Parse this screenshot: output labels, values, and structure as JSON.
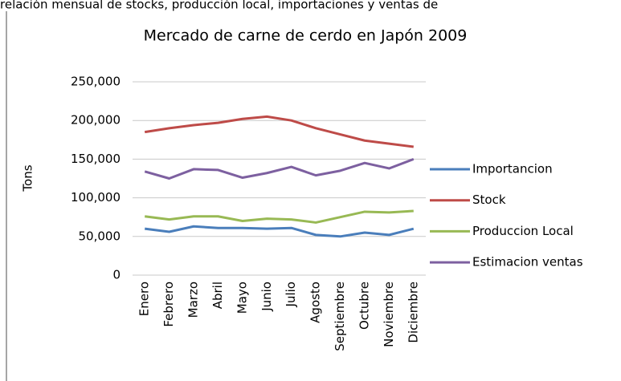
{
  "caption": "relación mensual de stocks, producción local, importaciones y ventas de",
  "chart_data": {
    "type": "line",
    "title": "Mercado de carne de cerdo en Japón 2009",
    "y_label": "Tons",
    "categories": [
      "Enero",
      "Febrero",
      "Marzo",
      "Abril",
      "Mayo",
      "Junio",
      "Julio",
      "Agosto",
      "Septiembre",
      "Octubre",
      "Noviembre",
      "Diciembre"
    ],
    "series": [
      {
        "name": "Importancion",
        "color": "#4a7ebb",
        "values": [
          60000,
          56000,
          63000,
          61000,
          61000,
          60000,
          61000,
          52000,
          50000,
          55000,
          52000,
          60000
        ]
      },
      {
        "name": "Stock",
        "color": "#be4b48",
        "values": [
          185000,
          190000,
          194000,
          197000,
          202000,
          205000,
          200000,
          190000,
          182000,
          174000,
          170000,
          166000
        ]
      },
      {
        "name": "Produccion Local",
        "color": "#98b954",
        "values": [
          76000,
          72000,
          76000,
          76000,
          70000,
          73000,
          72000,
          68000,
          75000,
          82000,
          81000,
          83000
        ]
      },
      {
        "name": "Estimacion ventas",
        "color": "#7d60a0",
        "values": [
          134000,
          125000,
          137000,
          136000,
          126000,
          132000,
          140000,
          129000,
          135000,
          145000,
          138000,
          150000
        ]
      }
    ],
    "ylim": [
      0,
      250000
    ],
    "yticks": [
      0,
      {
        "value": 50000,
        "label": "50,000"
      },
      {
        "value": 100000,
        "label": "100,000"
      },
      {
        "value": 150000,
        "label": "150,000"
      },
      {
        "value": 200000,
        "label": "200,000"
      },
      {
        "value": 250000,
        "label": "250,000"
      }
    ],
    "grid": true,
    "legend": "right"
  }
}
